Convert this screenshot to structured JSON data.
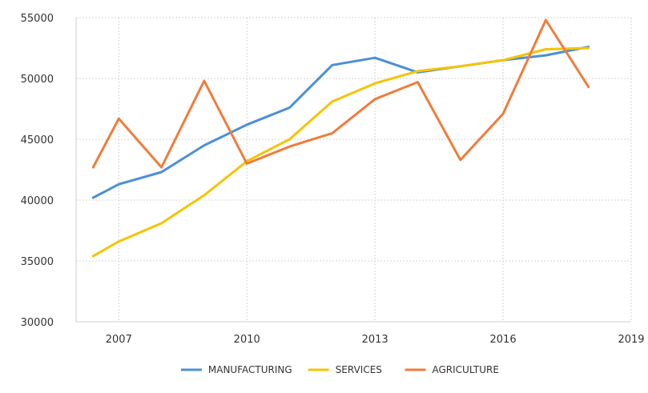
{
  "chart_data": {
    "type": "line",
    "title": "",
    "xlabel": "",
    "ylabel": "",
    "xlim": [
      2006,
      2019
    ],
    "ylim": [
      30000,
      55000
    ],
    "x_ticks": [
      2007,
      2010,
      2013,
      2016,
      2019
    ],
    "x_tick_labels": [
      "2007",
      "2010",
      "2013",
      "2016",
      "2019"
    ],
    "y_ticks": [
      30000,
      35000,
      40000,
      45000,
      50000,
      55000
    ],
    "y_tick_labels": [
      "30000",
      "35000",
      "40000",
      "45000",
      "50000",
      "55000"
    ],
    "grid": true,
    "legend_position": "bottom-center",
    "series": [
      {
        "name": "MANUFACTURING",
        "color": "#4a8fd9",
        "x": [
          2006.4,
          2007,
          2008,
          2009,
          2010,
          2011,
          2012,
          2013,
          2014,
          2015,
          2016,
          2017,
          2018
        ],
        "values": [
          40200,
          41300,
          42300,
          44500,
          46200,
          47600,
          51100,
          51700,
          50500,
          51000,
          51500,
          51900,
          52600
        ]
      },
      {
        "name": "SERVICES",
        "color": "#f5c400",
        "x": [
          2006.4,
          2007,
          2008,
          2009,
          2010,
          2011,
          2012,
          2013,
          2014,
          2015,
          2016,
          2017,
          2018
        ],
        "values": [
          35400,
          36600,
          38100,
          40400,
          43200,
          45000,
          48100,
          49600,
          50600,
          51000,
          51500,
          52400,
          52500
        ]
      },
      {
        "name": "AGRICULTURE",
        "color": "#f07c3a",
        "x": [
          2006.4,
          2007,
          2008,
          2009,
          2010,
          2011,
          2012,
          2013,
          2014,
          2015,
          2016,
          2017,
          2018
        ],
        "values": [
          42700,
          46700,
          42700,
          49800,
          43000,
          44400,
          45500,
          48300,
          49700,
          43300,
          47100,
          54800,
          49300
        ]
      }
    ]
  }
}
